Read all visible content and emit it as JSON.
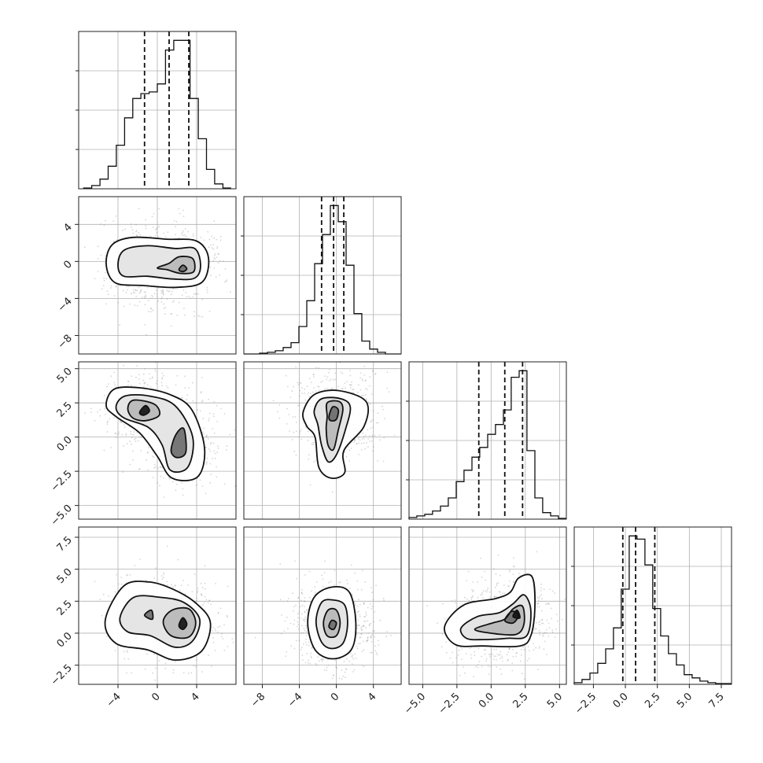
{
  "chart_data": {
    "type": "corner",
    "dimensions": 4,
    "parameters": [
      {
        "ticks": [
          -4,
          0,
          4
        ],
        "tick_labels": [
          "−4",
          "0",
          "4"
        ],
        "range": [
          -8,
          8
        ]
      },
      {
        "ticks": [
          -8,
          -4,
          0,
          4
        ],
        "tick_labels": [
          "−8",
          "−4",
          "0",
          "4"
        ],
        "range": [
          -10,
          7
        ]
      },
      {
        "ticks": [
          -5,
          -2.5,
          0,
          2.5,
          5
        ],
        "tick_labels": [
          "−5.0",
          "−2.5",
          "0.0",
          "2.5",
          "5.0"
        ],
        "range": [
          -6,
          5.5
        ]
      },
      {
        "ticks": [
          -2.5,
          0,
          2.5,
          5,
          7.5
        ],
        "tick_labels": [
          "−2.5",
          "0.0",
          "2.5",
          "5.0",
          "7.5"
        ],
        "range": [
          -4,
          8.3
        ]
      }
    ],
    "histograms": [
      {
        "param": 0,
        "bins": [
          -7.5,
          -6.67,
          -5.83,
          -5,
          -4.17,
          -3.33,
          -2.5,
          -1.67,
          -0.83,
          0,
          0.83,
          1.67,
          2.5,
          3.33,
          4.17,
          5,
          5.83,
          6.67,
          7.5
        ],
        "counts": [
          0.005,
          0.02,
          0.06,
          0.14,
          0.27,
          0.44,
          0.56,
          0.59,
          0.6,
          0.65,
          0.86,
          0.92,
          0.92,
          0.56,
          0.31,
          0.12,
          0.03,
          0.005
        ],
        "quantiles": [
          -1.3,
          1.2,
          3.2
        ]
      },
      {
        "param": 1,
        "bins": [
          -10,
          -9.15,
          -8.3,
          -7.45,
          -6.6,
          -5.75,
          -4.9,
          -4.05,
          -3.2,
          -2.35,
          -1.5,
          -0.65,
          0.2,
          1.05,
          1.9,
          2.75,
          3.6,
          4.45,
          5.3,
          6.15,
          7
        ],
        "counts": [
          0,
          0,
          0.005,
          0.01,
          0.02,
          0.04,
          0.07,
          0.17,
          0.33,
          0.56,
          0.74,
          0.92,
          0.82,
          0.55,
          0.25,
          0.08,
          0.03,
          0.01,
          0,
          0
        ],
        "quantiles": [
          -1.6,
          -0.3,
          0.8
        ]
      },
      {
        "param": 2,
        "bins": [
          -6,
          -5.43,
          -4.85,
          -4.28,
          -3.7,
          -3.13,
          -2.55,
          -1.98,
          -1.4,
          -0.83,
          -0.25,
          0.32,
          0.9,
          1.47,
          2.05,
          2.62,
          3.2,
          3.77,
          4.35,
          4.92,
          5.5
        ],
        "counts": [
          0.01,
          0.02,
          0.03,
          0.05,
          0.08,
          0.13,
          0.23,
          0.3,
          0.38,
          0.44,
          0.52,
          0.58,
          0.67,
          0.87,
          0.91,
          0.42,
          0.13,
          0.04,
          0.02,
          0.005
        ],
        "quantiles": [
          -0.9,
          1.0,
          2.3
        ]
      },
      {
        "param": 3,
        "bins": [
          -4,
          -3.39,
          -2.77,
          -2.16,
          -1.54,
          -0.93,
          -0.32,
          0.3,
          0.91,
          1.53,
          2.14,
          2.76,
          3.37,
          3.99,
          4.6,
          5.22,
          5.83,
          6.45,
          7.06,
          7.68,
          8.3
        ],
        "counts": [
          0.01,
          0.03,
          0.07,
          0.13,
          0.22,
          0.35,
          0.59,
          0.92,
          0.9,
          0.74,
          0.47,
          0.3,
          0.19,
          0.12,
          0.06,
          0.04,
          0.02,
          0.01,
          0.005,
          0.005
        ],
        "quantiles": [
          -0.2,
          0.8,
          2.3
        ]
      }
    ],
    "pairs": [
      {
        "x": 0,
        "y": 1,
        "modes": [
          [
            -1.5,
            -0.4
          ],
          [
            2.4,
            -0.6
          ]
        ],
        "contours": [
          [
            [
              -5.2,
              -0.3
            ],
            [
              -4.6,
              1.8
            ],
            [
              -2.5,
              2.6
            ],
            [
              1.0,
              2.4
            ],
            [
              4.0,
              2.2
            ],
            [
              5.2,
              0.4
            ],
            [
              4.6,
              -2.2
            ],
            [
              2.0,
              -2.8
            ],
            [
              -1.5,
              -2.6
            ],
            [
              -4.3,
              -2.3
            ]
          ],
          [
            [
              -4.0,
              -0.4
            ],
            [
              -3.4,
              1.2
            ],
            [
              -1.0,
              1.7
            ],
            [
              1.8,
              1.4
            ],
            [
              3.8,
              1.4
            ],
            [
              4.4,
              -0.4
            ],
            [
              3.8,
              -1.8
            ],
            [
              1.6,
              -1.9
            ],
            [
              -1.0,
              -1.6
            ],
            [
              -3.4,
              -1.6
            ]
          ],
          [
            [
              0.0,
              -0.7
            ],
            [
              1.2,
              -0.2
            ],
            [
              2.2,
              0.5
            ],
            [
              3.6,
              0.3
            ],
            [
              3.7,
              -1.1
            ],
            [
              2.4,
              -1.3
            ],
            [
              1.0,
              -0.9
            ]
          ],
          [
            [
              2.2,
              -0.9
            ],
            [
              2.6,
              -0.4
            ],
            [
              3.0,
              -0.8
            ],
            [
              2.6,
              -1.1
            ]
          ]
        ]
      },
      {
        "x": 0,
        "y": 2,
        "modes": [
          [
            -1.3,
            2.0
          ],
          [
            2.5,
            -0.5
          ]
        ],
        "contours": [
          [
            [
              -5.2,
              2.3
            ],
            [
              -4.4,
              3.5
            ],
            [
              -1.8,
              3.6
            ],
            [
              1.3,
              3.1
            ],
            [
              3.5,
              2.0
            ],
            [
              4.8,
              -0.8
            ],
            [
              4.1,
              -2.9
            ],
            [
              1.5,
              -3.0
            ],
            [
              0.0,
              -1.4
            ],
            [
              -1.8,
              0.3
            ],
            [
              -4.2,
              1.5
            ]
          ],
          [
            [
              -4.2,
              2.2
            ],
            [
              -3.3,
              3.0
            ],
            [
              -0.8,
              3.0
            ],
            [
              1.8,
              2.3
            ],
            [
              3.6,
              0.0
            ],
            [
              3.1,
              -2.2
            ],
            [
              1.3,
              -2.4
            ],
            [
              0.5,
              -0.6
            ],
            [
              -0.9,
              0.7
            ],
            [
              -3.4,
              1.4
            ]
          ],
          [
            [
              -3.0,
              2.1
            ],
            [
              -2.4,
              2.7
            ],
            [
              -0.3,
              2.4
            ],
            [
              0.2,
              1.6
            ],
            [
              -1.2,
              1.2
            ],
            [
              -2.5,
              1.4
            ]
          ],
          [
            [
              1.4,
              -1.0
            ],
            [
              2.0,
              -1.5
            ],
            [
              2.9,
              -1.1
            ],
            [
              2.7,
              0.6
            ],
            [
              1.9,
              0.2
            ]
          ],
          [
            [
              -1.8,
              1.8
            ],
            [
              -1.2,
              2.3
            ],
            [
              -0.8,
              1.9
            ],
            [
              -1.4,
              1.6
            ]
          ]
        ]
      },
      {
        "x": 1,
        "y": 2,
        "modes": [
          [
            -0.2,
            1.6
          ]
        ],
        "contours": [
          [
            [
              -3.6,
              1.8
            ],
            [
              -2.4,
              3.1
            ],
            [
              0.2,
              3.4
            ],
            [
              3.2,
              2.6
            ],
            [
              3.0,
              0.8
            ],
            [
              0.8,
              -1.0
            ],
            [
              0.9,
              -2.6
            ],
            [
              -0.6,
              -3.0
            ],
            [
              -1.9,
              -2.2
            ],
            [
              -2.3,
              0.0
            ],
            [
              -3.2,
              0.8
            ]
          ],
          [
            [
              -2.4,
              1.9
            ],
            [
              -1.6,
              2.8
            ],
            [
              0.5,
              2.8
            ],
            [
              1.5,
              2.2
            ],
            [
              1.0,
              0.6
            ],
            [
              0.0,
              -1.3
            ],
            [
              -0.9,
              -1.8
            ],
            [
              -1.6,
              -0.6
            ],
            [
              -2.0,
              0.9
            ]
          ],
          [
            [
              -1.0,
              1.5
            ],
            [
              -1.0,
              2.5
            ],
            [
              0.3,
              2.6
            ],
            [
              0.7,
              2.0
            ],
            [
              0.2,
              0.5
            ],
            [
              -0.3,
              -0.9
            ],
            [
              -0.9,
              -0.6
            ],
            [
              -1.1,
              0.6
            ]
          ],
          [
            [
              -0.8,
              1.5
            ],
            [
              -0.4,
              2.2
            ],
            [
              0.2,
              2.0
            ],
            [
              0.0,
              1.3
            ],
            [
              -0.6,
              1.2
            ]
          ]
        ]
      },
      {
        "x": 0,
        "y": 3,
        "modes": [
          [
            -0.7,
            1.4
          ],
          [
            2.6,
            0.7
          ]
        ],
        "contours": [
          [
            [
              -5.3,
              1.0
            ],
            [
              -3.4,
              3.7
            ],
            [
              -0.8,
              4.0
            ],
            [
              1.7,
              3.4
            ],
            [
              4.0,
              2.3
            ],
            [
              5.4,
              0.8
            ],
            [
              4.5,
              -1.4
            ],
            [
              1.8,
              -2.1
            ],
            [
              -1.0,
              -1.3
            ],
            [
              -4.2,
              -0.8
            ]
          ],
          [
            [
              -3.8,
              1.2
            ],
            [
              -2.4,
              2.8
            ],
            [
              0.3,
              2.8
            ],
            [
              2.7,
              2.4
            ],
            [
              4.3,
              1.1
            ],
            [
              3.6,
              -0.6
            ],
            [
              1.8,
              -1.1
            ],
            [
              -0.7,
              -0.2
            ],
            [
              -3.0,
              0.1
            ]
          ],
          [
            [
              0.6,
              0.9
            ],
            [
              1.5,
              1.8
            ],
            [
              3.2,
              1.9
            ],
            [
              3.9,
              0.8
            ],
            [
              3.2,
              -0.3
            ],
            [
              1.4,
              -0.2
            ]
          ],
          [
            [
              -1.3,
              1.4
            ],
            [
              -0.6,
              1.8
            ],
            [
              -0.5,
              1.1
            ]
          ],
          [
            [
              2.2,
              0.6
            ],
            [
              2.6,
              1.2
            ],
            [
              3.0,
              0.7
            ],
            [
              2.6,
              0.3
            ]
          ]
        ]
      },
      {
        "x": 1,
        "y": 3,
        "modes": [
          [
            -0.4,
            0.7
          ]
        ],
        "contours": [
          [
            [
              -3.1,
              0.8
            ],
            [
              -2.4,
              2.8
            ],
            [
              -0.5,
              3.6
            ],
            [
              1.4,
              3.2
            ],
            [
              2.1,
              0.8
            ],
            [
              1.6,
              -1.3
            ],
            [
              -0.4,
              -2.0
            ],
            [
              -2.3,
              -1.3
            ]
          ],
          [
            [
              -2.2,
              0.9
            ],
            [
              -1.6,
              2.4
            ],
            [
              -0.4,
              2.6
            ],
            [
              0.9,
              2.2
            ],
            [
              1.2,
              0.6
            ],
            [
              0.7,
              -0.8
            ],
            [
              -0.5,
              -1.2
            ],
            [
              -1.6,
              -0.7
            ]
          ],
          [
            [
              -1.4,
              0.8
            ],
            [
              -0.9,
              1.8
            ],
            [
              0.0,
              1.8
            ],
            [
              0.4,
              0.8
            ],
            [
              0.0,
              -0.2
            ],
            [
              -1.0,
              -0.2
            ]
          ],
          [
            [
              -0.8,
              0.5
            ],
            [
              -0.5,
              1.0
            ],
            [
              0.0,
              0.8
            ],
            [
              -0.3,
              0.3
            ]
          ]
        ]
      },
      {
        "x": 2,
        "y": 3,
        "modes": [
          [
            0.2,
            0.4
          ],
          [
            1.8,
            1.2
          ]
        ],
        "contours": [
          [
            [
              -3.4,
              0.5
            ],
            [
              -2.0,
              2.2
            ],
            [
              0.3,
              2.7
            ],
            [
              1.4,
              3.2
            ],
            [
              2.0,
              4.3
            ],
            [
              3.0,
              4.4
            ],
            [
              3.2,
              2.0
            ],
            [
              2.9,
              -0.2
            ],
            [
              2.1,
              -1.0
            ],
            [
              -0.6,
              -1.0
            ],
            [
              -2.6,
              -0.9
            ]
          ],
          [
            [
              -2.2,
              0.4
            ],
            [
              -1.0,
              1.3
            ],
            [
              0.6,
              1.6
            ],
            [
              1.6,
              2.3
            ],
            [
              2.4,
              3.0
            ],
            [
              2.9,
              1.8
            ],
            [
              2.6,
              -0.2
            ],
            [
              1.2,
              -0.4
            ],
            [
              -0.6,
              -0.5
            ],
            [
              -1.8,
              -0.4
            ]
          ],
          [
            [
              -1.2,
              0.3
            ],
            [
              0.1,
              0.8
            ],
            [
              1.0,
              1.1
            ],
            [
              1.6,
              1.9
            ],
            [
              2.3,
              2.1
            ],
            [
              2.4,
              0.7
            ],
            [
              1.8,
              -0.1
            ],
            [
              0.0,
              0.0
            ]
          ],
          [
            [
              1.0,
              1.0
            ],
            [
              1.5,
              1.7
            ],
            [
              2.0,
              1.4
            ],
            [
              1.6,
              0.8
            ]
          ],
          [
            [
              1.6,
              1.3
            ],
            [
              1.9,
              1.8
            ],
            [
              2.1,
              1.2
            ]
          ]
        ]
      }
    ]
  }
}
